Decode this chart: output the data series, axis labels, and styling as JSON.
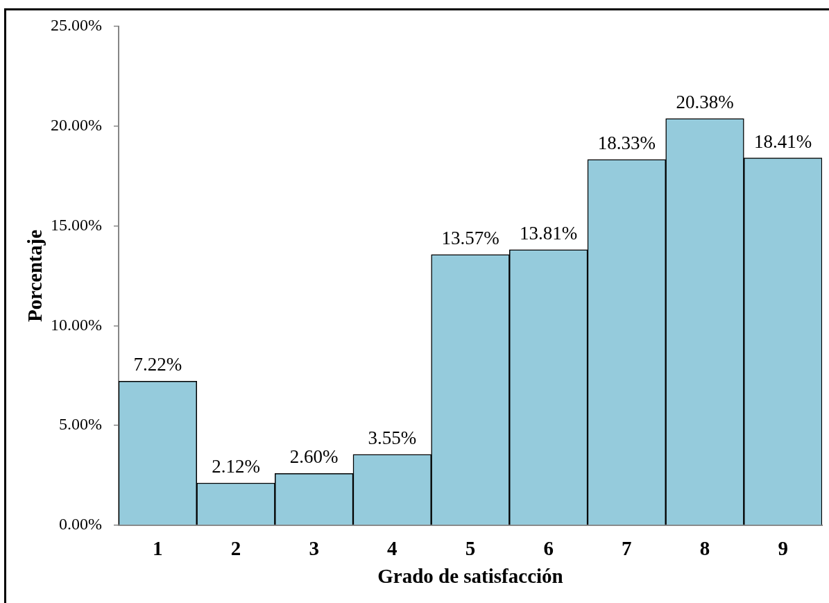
{
  "chart_data": {
    "type": "bar",
    "xlabel": "Grado de satisfacción",
    "ylabel": "Porcentaje",
    "categories": [
      "1",
      "2",
      "3",
      "4",
      "5",
      "6",
      "7",
      "8",
      "9"
    ],
    "values": [
      7.22,
      2.12,
      2.6,
      3.55,
      13.57,
      13.81,
      18.33,
      20.38,
      18.41
    ],
    "value_labels": [
      "7.22%",
      "2.12%",
      "2.60%",
      "3.55%",
      "13.57%",
      "13.81%",
      "18.33%",
      "20.38%",
      "18.41%"
    ],
    "color": "#95cbdc",
    "ylim": [
      0,
      25
    ],
    "yticks": [
      {
        "value": 0,
        "label": "0.00%"
      },
      {
        "value": 5,
        "label": "5.00%"
      },
      {
        "value": 10,
        "label": "10.00%"
      },
      {
        "value": 15,
        "label": "15.00%"
      },
      {
        "value": 20,
        "label": "20.00%"
      },
      {
        "value": 25,
        "label": "25.00%"
      }
    ]
  }
}
